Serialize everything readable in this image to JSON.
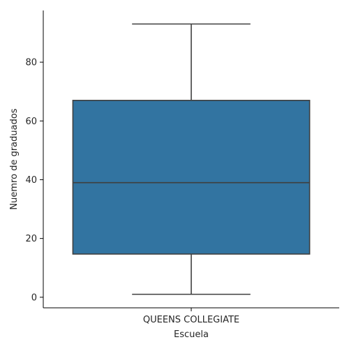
{
  "chart_data": {
    "type": "box",
    "xlabel": "Escuela",
    "ylabel": "Nuemro de graduados",
    "categories": [
      "QUEENS COLLEGIATE"
    ],
    "boxes": [
      {
        "category": "QUEENS COLLEGIATE",
        "whisker_low": 1,
        "q1": 14.7,
        "median": 39,
        "q3": 67,
        "whisker_high": 93
      }
    ],
    "yticks": [
      0,
      20,
      40,
      60,
      80
    ],
    "ylim": [
      -3.6,
      97.6
    ],
    "grid": false,
    "colors": {
      "box_fill": "#3274a1",
      "lines": "#3f3f3f",
      "axis": "#000000"
    }
  }
}
